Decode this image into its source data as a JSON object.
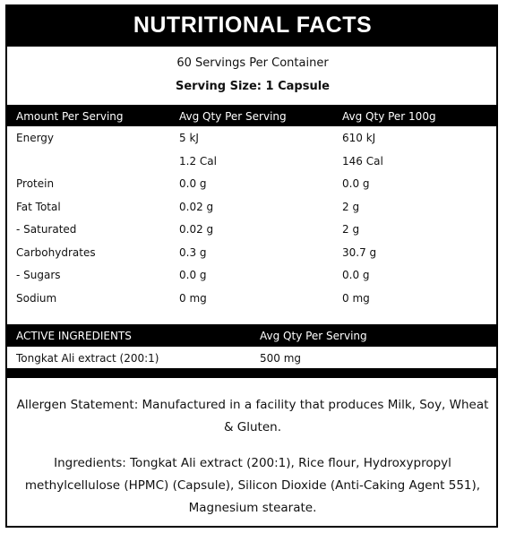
{
  "header": {
    "title": "Nutritional Facts",
    "servings": "60 Servings Per Container",
    "serving_size": "Serving Size: 1 Capsule"
  },
  "table": {
    "columns": [
      "Amount Per Serving",
      "Avg Qty Per Serving",
      "Avg Qty Per 100g"
    ],
    "rows": [
      [
        "Energy",
        "5 kJ",
        "610 kJ"
      ],
      [
        null,
        "1.2 Cal",
        "146 Cal"
      ],
      [
        "Protein",
        "0.0 g",
        "0.0 g"
      ],
      [
        "Fat Total",
        "0.02 g",
        "2 g"
      ],
      [
        "- Saturated",
        "0.02 g",
        "2 g"
      ],
      [
        "Carbohydrates",
        "0.3 g",
        "30.7 g"
      ],
      [
        "- Sugars",
        "0.0 g",
        "0.0 g"
      ],
      [
        "Sodium",
        "0 mg",
        "0 mg"
      ]
    ]
  },
  "active": {
    "columns": [
      "ACTIVE INGREDIENTS",
      "Avg Qty Per Serving"
    ],
    "rows": [
      [
        "Tongkat Ali extract (200:1)",
        "500 mg"
      ]
    ]
  },
  "allergen": "Allergen Statement: Manufactured in a facility that produces Milk, Soy, Wheat & Gluten.",
  "ingredients": "Ingredients: Tongkat Ali extract (200:1), Rice flour, Hydroxypropyl methylcellulose (HPMC) (Capsule), Silicon Dioxide (Anti-Caking Agent 551), Magnesium stearate."
}
